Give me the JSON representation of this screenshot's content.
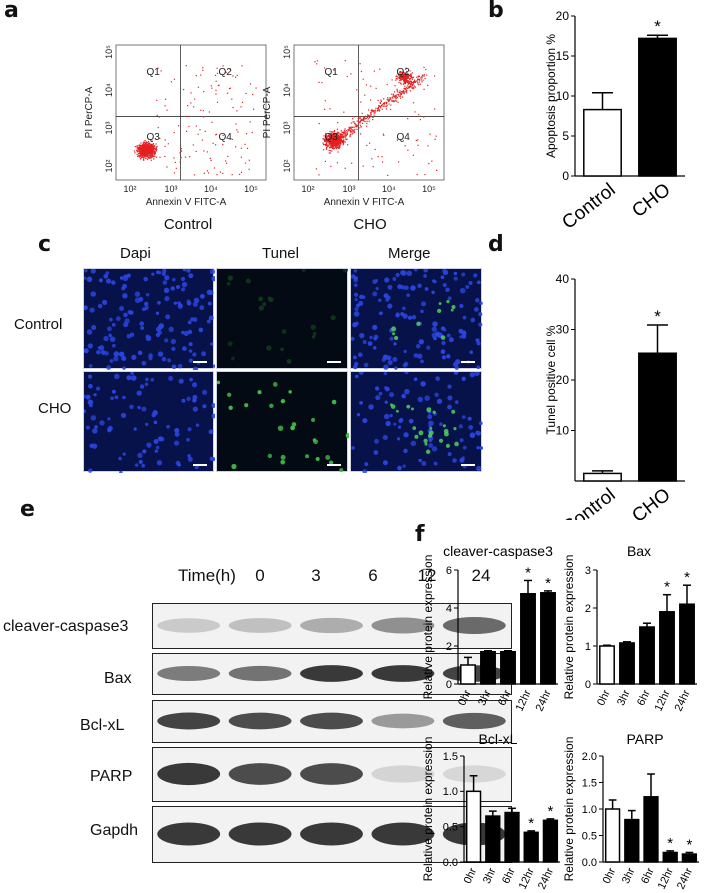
{
  "panels": {
    "a": {
      "letter": "a",
      "plots": [
        {
          "label": "Control",
          "ylabel": "PI PerCP-A",
          "xlabel": "Annexin V FITC-A",
          "quadrants": [
            "Q1",
            "Q2",
            "Q3",
            "Q4"
          ],
          "ticks": [
            "10²",
            "10³",
            "10⁴",
            "10⁵"
          ]
        },
        {
          "label": "CHO",
          "ylabel": "PI PerCP-A",
          "xlabel": "Annexin V FITC-A",
          "quadrants": [
            "Q1",
            "Q2",
            "Q3",
            "Q4"
          ],
          "ticks": [
            "10²",
            "10³",
            "10⁴",
            "10⁵"
          ]
        }
      ]
    },
    "b": {
      "letter": "b"
    },
    "c": {
      "letter": "c",
      "columns": [
        "Dapi",
        "Tunel",
        "Merge"
      ],
      "rows": [
        "Control",
        "CHO"
      ]
    },
    "d": {
      "letter": "d"
    },
    "e": {
      "letter": "e",
      "time_label": "Time(h)",
      "times": [
        "0",
        "3",
        "6",
        "12",
        "24"
      ],
      "proteins": [
        "cleaver-caspase3",
        "Bax",
        "Bcl-xL",
        "PARP",
        "Gapdh"
      ],
      "band_intensity": [
        [
          0.15,
          0.2,
          0.3,
          0.45,
          0.65
        ],
        [
          0.55,
          0.6,
          0.9,
          0.9,
          0.85
        ],
        [
          0.85,
          0.8,
          0.8,
          0.4,
          0.7
        ],
        [
          0.9,
          0.8,
          0.8,
          0.1,
          0.08
        ],
        [
          0.9,
          0.9,
          0.9,
          0.9,
          0.9
        ]
      ]
    },
    "f": {
      "letter": "f"
    }
  },
  "chart_data": [
    {
      "id": "b",
      "type": "bar",
      "categories": [
        "Control",
        "CHO"
      ],
      "values": [
        8.3,
        17.2
      ],
      "errors": [
        2.1,
        0.4
      ],
      "fills": [
        "#ffffff",
        "#000000"
      ],
      "significance": [
        "",
        "*"
      ],
      "ylabel": "Apoptosis proportion %",
      "ylim": [
        0,
        20
      ],
      "yticks": [
        "0",
        "5",
        "10",
        "15",
        "20"
      ]
    },
    {
      "id": "d",
      "type": "bar",
      "categories": [
        "Control",
        "CHO"
      ],
      "values": [
        1.5,
        25.3
      ],
      "errors": [
        0.5,
        5.6
      ],
      "fills": [
        "#ffffff",
        "#000000"
      ],
      "significance": [
        "",
        "*"
      ],
      "ylabel": "Tunel positive cell %",
      "ylim": [
        0,
        40
      ],
      "yticks": [
        "10",
        "20",
        "30",
        "40"
      ]
    },
    {
      "id": "f1",
      "type": "bar",
      "title": "cleaver-caspase3",
      "categories": [
        "0hr",
        "3hr",
        "6hr",
        "12hr",
        "24hr"
      ],
      "values": [
        1.0,
        1.7,
        1.7,
        4.75,
        4.8
      ],
      "errors": [
        0.4,
        0.05,
        0.05,
        0.7,
        0.1
      ],
      "fills": [
        "#ffffff",
        "#000000",
        "#000000",
        "#000000",
        "#000000"
      ],
      "significance": [
        "",
        "",
        "",
        "*",
        "*"
      ],
      "ylabel": "Relative protein expression",
      "ylim": [
        0,
        6
      ],
      "yticks": [
        "0",
        "2",
        "4",
        "6"
      ]
    },
    {
      "id": "f2",
      "type": "bar",
      "title": "Bax",
      "categories": [
        "0hr",
        "3hr",
        "6hr",
        "12hr",
        "24hr"
      ],
      "values": [
        1.0,
        1.08,
        1.5,
        1.9,
        2.1
      ],
      "errors": [
        0.02,
        0.03,
        0.1,
        0.45,
        0.5
      ],
      "fills": [
        "#ffffff",
        "#000000",
        "#000000",
        "#000000",
        "#000000"
      ],
      "significance": [
        "",
        "",
        "",
        "*",
        "*"
      ],
      "ylabel": "Relative protein expression",
      "ylim": [
        0,
        3
      ],
      "yticks": [
        "0",
        "1",
        "2",
        "3"
      ]
    },
    {
      "id": "f3",
      "type": "bar",
      "title": "Bcl-xL",
      "categories": [
        "0hr",
        "3hr",
        "6hr",
        "12hr",
        "24hr"
      ],
      "values": [
        1.0,
        0.65,
        0.7,
        0.42,
        0.59
      ],
      "errors": [
        0.22,
        0.07,
        0.06,
        0.02,
        0.02
      ],
      "fills": [
        "#ffffff",
        "#000000",
        "#000000",
        "#000000",
        "#000000"
      ],
      "significance": [
        "",
        "",
        "",
        "*",
        "*"
      ],
      "ylabel": "Relative protein expression",
      "ylim": [
        0,
        1.5
      ],
      "yticks": [
        "0.0",
        "0.5",
        "1.0",
        "1.5"
      ]
    },
    {
      "id": "f4",
      "type": "bar",
      "title": "PARP",
      "categories": [
        "0hr",
        "3hr",
        "6hr",
        "12hr",
        "24hr"
      ],
      "values": [
        1.0,
        0.8,
        1.23,
        0.18,
        0.15
      ],
      "errors": [
        0.17,
        0.17,
        0.43,
        0.03,
        0.03
      ],
      "fills": [
        "#ffffff",
        "#000000",
        "#000000",
        "#000000",
        "#000000"
      ],
      "significance": [
        "",
        "",
        "",
        "*",
        "*"
      ],
      "ylabel": "Relative protein expression",
      "ylim": [
        0,
        2.0
      ],
      "yticks": [
        "0.0",
        "0.5",
        "1.0",
        "1.5",
        "2.0"
      ]
    }
  ]
}
